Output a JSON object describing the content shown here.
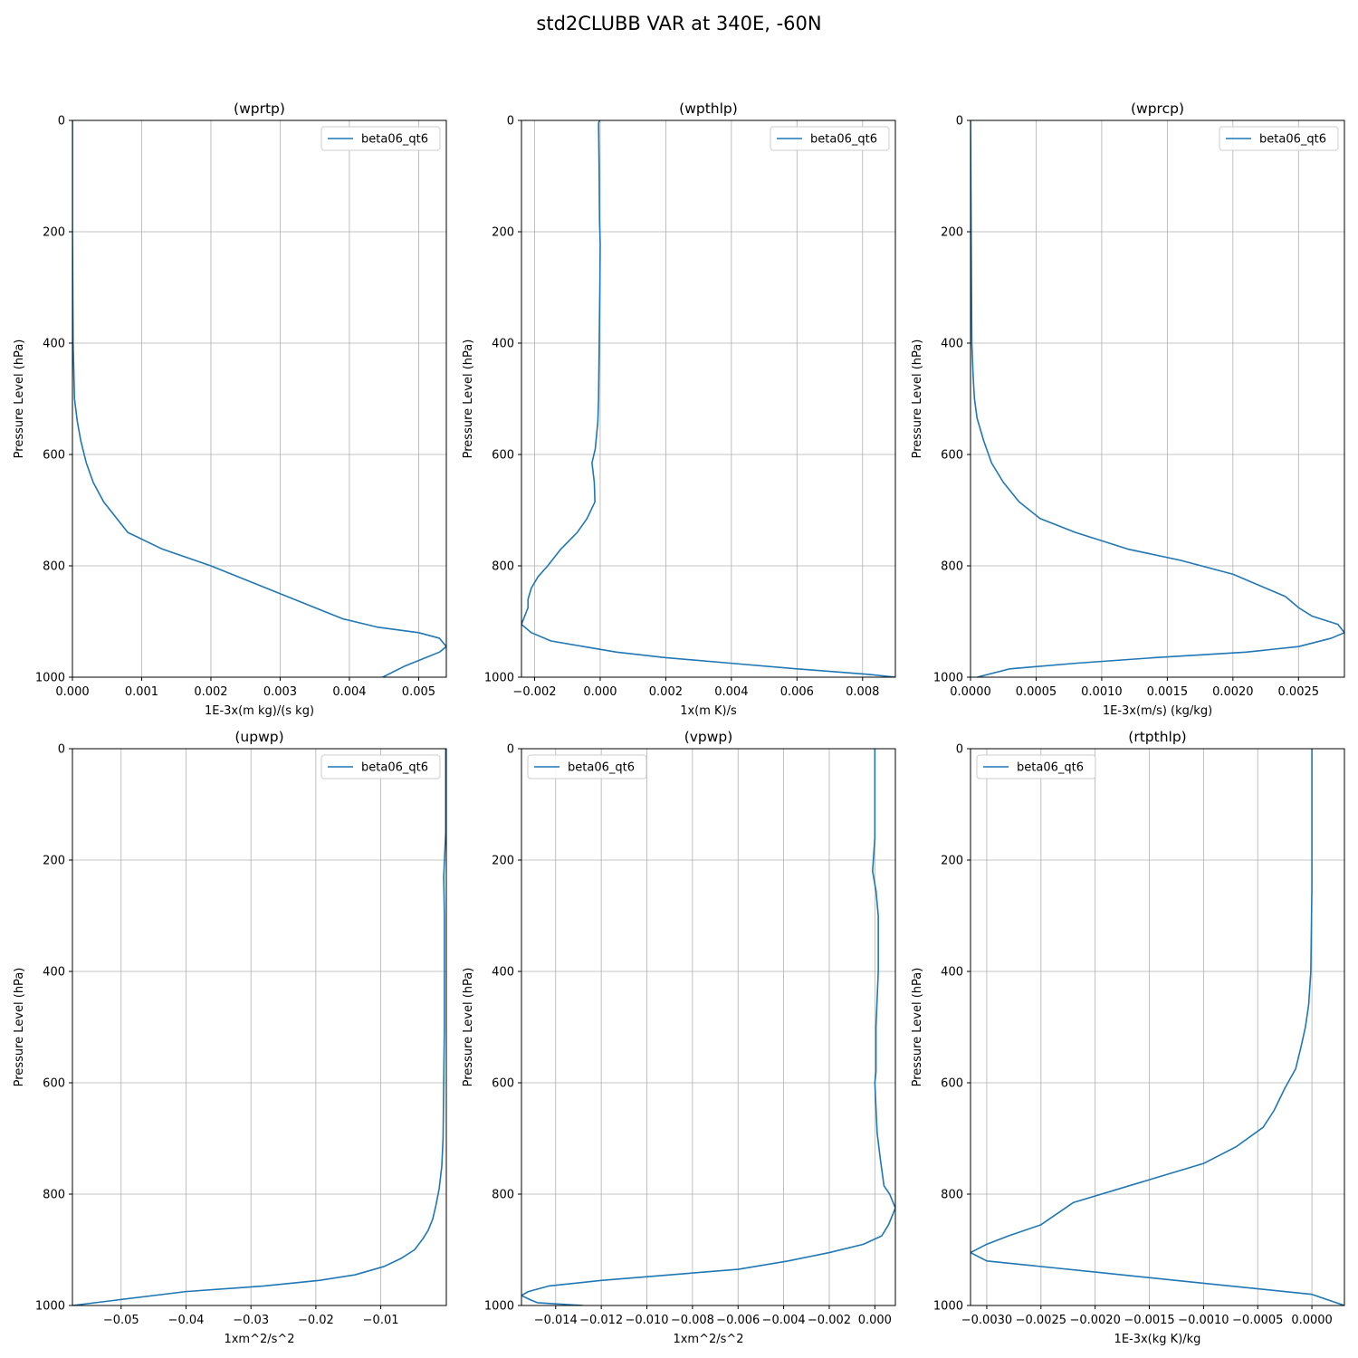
{
  "figure": {
    "title": "std2CLUBB VAR at 340E, -60N"
  },
  "style": {
    "line_color": "#1f77b4",
    "grid_color": "#b0b0b0",
    "axis_color": "#000000"
  },
  "chart_data": [
    {
      "type": "line",
      "title": "(wprtp)",
      "xlabel": "1E-3x(m kg)/(s kg)",
      "ylabel": "Pressure Level (hPa)",
      "xlim": [
        0,
        0.0054
      ],
      "ylim": [
        1000,
        0
      ],
      "xticks": [
        0,
        0.001,
        0.002,
        0.003,
        0.004,
        0.005
      ],
      "xtick_labels": [
        "0.000",
        "0.001",
        "0.002",
        "0.003",
        "0.004",
        "0.005"
      ],
      "yticks": [
        0,
        200,
        400,
        600,
        800,
        1000
      ],
      "ytick_labels": [
        "0",
        "200",
        "400",
        "600",
        "800",
        "1000"
      ],
      "grid": true,
      "legend": {
        "position": "upper right",
        "entries": [
          "beta06_qt6"
        ]
      },
      "series": [
        {
          "name": "beta06_qt6",
          "x": [
            0,
            0,
            1e-05,
            3e-05,
            7e-05,
            0.00012,
            0.0002,
            0.0003,
            0.00045,
            0.0008,
            0.0013,
            0.002,
            0.0028,
            0.0035,
            0.0039,
            0.0044,
            0.005,
            0.0053,
            0.0054,
            0.0053,
            0.0051,
            0.0048,
            0.00448
          ],
          "y": [
            0,
            200,
            400,
            500,
            540,
            575,
            615,
            650,
            685,
            740,
            770,
            800,
            840,
            875,
            895,
            910,
            920,
            930,
            945,
            955,
            965,
            980,
            1000
          ]
        }
      ]
    },
    {
      "type": "line",
      "title": "(wpthlp)",
      "xlabel": "1x(m K)/s",
      "ylabel": "Pressure Level (hPa)",
      "xlim": [
        -0.0024,
        0.009
      ],
      "ylim": [
        1000,
        0
      ],
      "xticks": [
        -0.002,
        0,
        0.002,
        0.004,
        0.006,
        0.008
      ],
      "xtick_labels": [
        "−0.002",
        "0.000",
        "0.002",
        "0.004",
        "0.006",
        "0.008"
      ],
      "yticks": [
        0,
        200,
        400,
        600,
        800,
        1000
      ],
      "ytick_labels": [
        "0",
        "200",
        "400",
        "600",
        "800",
        "1000"
      ],
      "grid": true,
      "legend": {
        "position": "upper right",
        "entries": [
          "beta06_qt6"
        ]
      },
      "series": [
        {
          "name": "beta06_qt6",
          "x": [
            -2e-05,
            -5e-05,
            -3e-05,
            -2e-05,
            0,
            -1e-05,
            -3e-05,
            -5e-05,
            -7e-05,
            -0.00015,
            -0.00025,
            -0.00018,
            -0.00016,
            -0.0004,
            -0.0007,
            -0.0012,
            -0.0016,
            -0.0019,
            -0.0021,
            -0.0022,
            -0.0022,
            -0.0024,
            -0.0021,
            -0.0015,
            -0.0005,
            0.0005,
            0.002,
            0.004,
            0.006,
            0.0082,
            0.009
          ],
          "y": [
            0,
            5,
            100,
            180,
            220,
            300,
            400,
            500,
            540,
            590,
            615,
            650,
            685,
            715,
            740,
            770,
            800,
            820,
            840,
            860,
            875,
            905,
            920,
            935,
            945,
            955,
            965,
            975,
            985,
            995,
            1000
          ]
        }
      ]
    },
    {
      "type": "line",
      "title": "(wprcp)",
      "xlabel": "1E-3x(m/s) (kg/kg)",
      "ylabel": "Pressure Level (hPa)",
      "xlim": [
        0,
        0.00285
      ],
      "ylim": [
        1000,
        0
      ],
      "xticks": [
        0,
        0.0005,
        0.001,
        0.0015,
        0.002,
        0.0025
      ],
      "xtick_labels": [
        "0.0000",
        "0.0005",
        "0.0010",
        "0.0015",
        "0.0020",
        "0.0025"
      ],
      "yticks": [
        0,
        200,
        400,
        600,
        800,
        1000
      ],
      "ytick_labels": [
        "0",
        "200",
        "400",
        "600",
        "800",
        "1000"
      ],
      "grid": true,
      "legend": {
        "position": "upper right",
        "entries": [
          "beta06_qt6"
        ]
      },
      "series": [
        {
          "name": "beta06_qt6",
          "x": [
            0,
            5e-06,
            1e-05,
            2e-05,
            3e-05,
            5e-05,
            0.0001,
            0.00016,
            0.00025,
            0.00037,
            0.00053,
            0.0008,
            0.0012,
            0.0016,
            0.002,
            0.00225,
            0.0024,
            0.0025,
            0.0026,
            0.0028,
            0.00285,
            0.00275,
            0.0025,
            0.0021,
            0.0014,
            0.0008,
            0.0003,
            5e-05
          ],
          "y": [
            0,
            200,
            400,
            460,
            500,
            535,
            575,
            615,
            650,
            685,
            715,
            740,
            770,
            790,
            815,
            840,
            855,
            875,
            890,
            905,
            920,
            930,
            945,
            955,
            965,
            975,
            985,
            1000
          ]
        }
      ]
    },
    {
      "type": "line",
      "title": "(upwp)",
      "xlabel": "1xm^2/s^2",
      "ylabel": "Pressure Level (hPa)",
      "xlim": [
        -0.0575,
        0.0001
      ],
      "ylim": [
        1000,
        0
      ],
      "xticks": [
        -0.05,
        -0.04,
        -0.03,
        -0.02,
        -0.01
      ],
      "xtick_labels": [
        "−0.05",
        "−0.04",
        "−0.03",
        "−0.02",
        "−0.01"
      ],
      "yticks": [
        0,
        200,
        400,
        600,
        800,
        1000
      ],
      "ytick_labels": [
        "0",
        "200",
        "400",
        "600",
        "800",
        "1000"
      ],
      "grid": true,
      "legend": {
        "position": "upper right",
        "entries": [
          "beta06_qt6"
        ]
      },
      "series": [
        {
          "name": "beta06_qt6",
          "x": [
            0,
            0,
            -0.0003,
            -0.0002,
            -0.0002,
            -0.0003,
            -0.0004,
            -0.0006,
            -0.001,
            -0.0015,
            -0.002,
            -0.0027,
            -0.0035,
            -0.0048,
            -0.0068,
            -0.0095,
            -0.014,
            -0.0195,
            -0.028,
            -0.04,
            -0.0575
          ],
          "y": [
            0,
            150,
            230,
            300,
            500,
            600,
            700,
            750,
            790,
            820,
            845,
            865,
            880,
            900,
            915,
            930,
            945,
            955,
            965,
            975,
            1000
          ]
        }
      ]
    },
    {
      "type": "line",
      "title": "(vpwp)",
      "xlabel": "1xm^2/s^2",
      "ylabel": "Pressure Level (hPa)",
      "xlim": [
        -0.0155,
        0.0009
      ],
      "ylim": [
        1000,
        0
      ],
      "xticks": [
        -0.014,
        -0.012,
        -0.01,
        -0.008,
        -0.006,
        -0.004,
        -0.002,
        0
      ],
      "xtick_labels": [
        "−0.014",
        "−0.012",
        "−0.010",
        "−0.008",
        "−0.006",
        "−0.004",
        "−0.002",
        "0.000"
      ],
      "yticks": [
        0,
        200,
        400,
        600,
        800,
        1000
      ],
      "ytick_labels": [
        "0",
        "200",
        "400",
        "600",
        "800",
        "1000"
      ],
      "grid": true,
      "legend": {
        "position": "upper left",
        "entries": [
          "beta06_qt6"
        ]
      },
      "series": [
        {
          "name": "beta06_qt6",
          "x": [
            0,
            0,
            -5e-05,
            -0.0001,
            5e-05,
            0.00015,
            0.00015,
            5e-05,
            5e-05,
            0,
            0.0001,
            0.00025,
            0.0004,
            0.00065,
            0.0008,
            0.0009,
            0.0008,
            0.0006,
            0.0003,
            -0.0005,
            -0.002,
            -0.0038,
            -0.006,
            -0.009,
            -0.012,
            -0.0143,
            -0.0152,
            -0.0155,
            -0.0151,
            -0.0148,
            -0.0128
          ],
          "y": [
            0,
            160,
            190,
            220,
            255,
            300,
            400,
            500,
            580,
            600,
            690,
            740,
            785,
            800,
            815,
            825,
            835,
            855,
            875,
            890,
            905,
            920,
            935,
            945,
            955,
            965,
            975,
            982,
            990,
            995,
            1000
          ]
        }
      ]
    },
    {
      "type": "line",
      "title": "(rtpthlp)",
      "xlabel": "1E-3x(kg K)/kg",
      "ylabel": "Pressure Level (hPa)",
      "xlim": [
        -0.00315,
        0.0003
      ],
      "ylim": [
        1000,
        0
      ],
      "xticks": [
        -0.003,
        -0.0025,
        -0.002,
        -0.0015,
        -0.001,
        -0.0005,
        0
      ],
      "xtick_labels": [
        "−0.0030",
        "−0.0025",
        "−0.0020",
        "−0.0015",
        "−0.0010",
        "−0.0005",
        "0.0000"
      ],
      "yticks": [
        0,
        200,
        400,
        600,
        800,
        1000
      ],
      "ytick_labels": [
        "0",
        "200",
        "400",
        "600",
        "800",
        "1000"
      ],
      "grid": true,
      "legend": {
        "position": "upper left",
        "entries": [
          "beta06_qt6"
        ]
      },
      "series": [
        {
          "name": "beta06_qt6",
          "x": [
            0,
            0,
            -1e-05,
            -3e-05,
            -6e-05,
            -0.0001,
            -0.00015,
            -0.00025,
            -0.00035,
            -0.00045,
            -0.0007,
            -0.001,
            -0.0016,
            -0.0022,
            -0.0025,
            -0.0028,
            -0.003,
            -0.00315,
            -0.003,
            -0.002,
            -0.001,
            0,
            0.0003
          ],
          "y": [
            0,
            250,
            400,
            460,
            500,
            535,
            575,
            610,
            650,
            680,
            715,
            745,
            780,
            815,
            855,
            875,
            890,
            905,
            920,
            940,
            960,
            980,
            1000
          ]
        }
      ]
    }
  ]
}
